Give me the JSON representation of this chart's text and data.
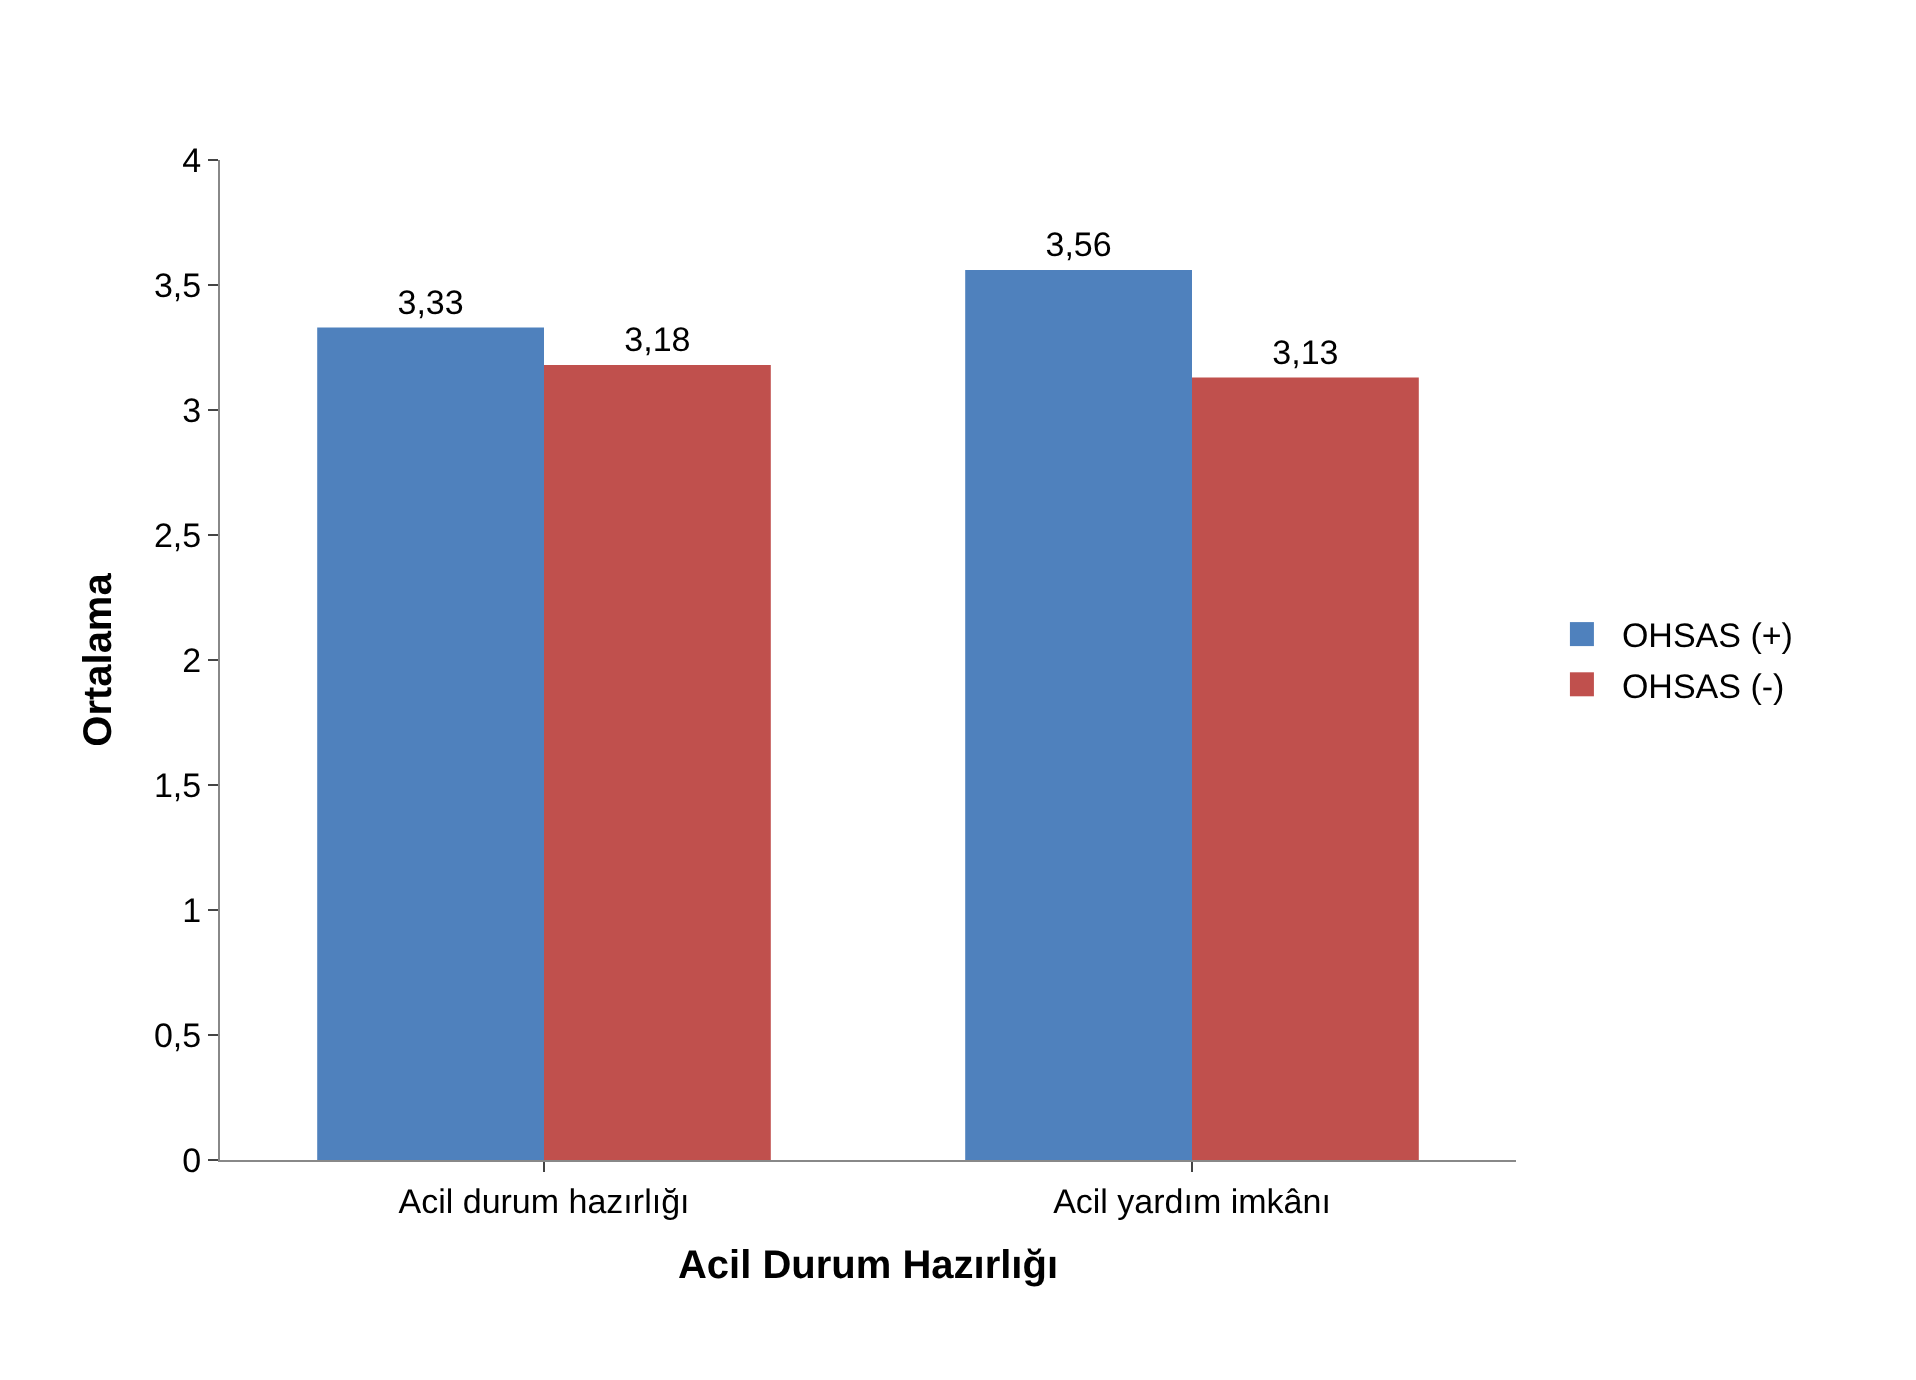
{
  "chart_data": {
    "type": "bar",
    "xlabel": "Acil Durum Hazırlığı",
    "ylabel": "Ortalama",
    "categories": [
      "Acil durum hazırlığı",
      "Acil yardım imkânı"
    ],
    "series": [
      {
        "name": "OHSAS (+)",
        "color": "#4f81bd",
        "values": [
          3.33,
          3.56
        ],
        "value_labels": [
          "3,33",
          "3,56"
        ]
      },
      {
        "name": "OHSAS (-)",
        "color": "#c0504d",
        "values": [
          3.18,
          3.13
        ],
        "value_labels": [
          "3,18",
          "3,13"
        ]
      }
    ],
    "ylim": [
      0,
      4
    ],
    "yticks": [
      0,
      {
        "value": 0.5,
        "label": "0,5"
      },
      1,
      {
        "value": 1.5,
        "label": "1,5"
      },
      2,
      {
        "value": 2.5,
        "label": "2,5"
      },
      3,
      {
        "value": 3.5,
        "label": "3,5"
      },
      4
    ],
    "grid": false,
    "legend": "right"
  }
}
